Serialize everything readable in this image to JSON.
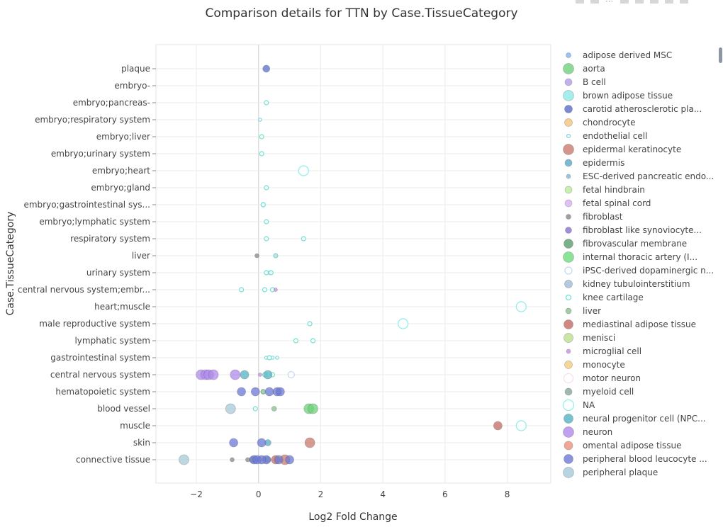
{
  "chart_data": {
    "type": "scatter",
    "title": "Comparison details for TTN by Case.TissueCategory",
    "xlabel": "Log2 Fold Change",
    "ylabel": "Case.TissueCategory",
    "xlim": [
      -3.3,
      9.4
    ],
    "x_ticks": [
      -2,
      0,
      2,
      4,
      6,
      8
    ],
    "x_tick_labels": [
      "−2",
      "0",
      "2",
      "4",
      "6",
      "8"
    ],
    "grid": true,
    "legend_position": "right",
    "categories": [
      "plaque",
      "embryo-",
      "embryo;pancreas-",
      "embryo;respiratory system",
      "embryo;liver",
      "embryo;urinary system",
      "embryo;heart",
      "embryo;gland",
      "embryo;gastrointestinal sys...",
      "embryo;lymphatic system",
      "respiratory system",
      "liver",
      "urinary system",
      "central nervous system;embr...",
      "heart;muscle",
      "male reproductive system",
      "lymphatic system",
      "gastrointestinal system",
      "central nervous system",
      "hematopoietic system",
      "blood vessel",
      "muscle",
      "skin",
      "connective tissue"
    ],
    "series": [
      {
        "name": "adipose derived MSC",
        "color": "#7fb2f0",
        "size": 7,
        "hollow": false,
        "points": [
          [
            -0.05,
            "connective tissue"
          ]
        ]
      },
      {
        "name": "aorta",
        "color": "#6fd17a",
        "size": 15,
        "hollow": false,
        "points": [
          [
            1.62,
            "blood vessel"
          ],
          [
            1.75,
            "blood vessel"
          ]
        ]
      },
      {
        "name": "B cell",
        "color": "#b79be8",
        "size": 10,
        "hollow": false,
        "points": []
      },
      {
        "name": "brown adipose tissue",
        "color": "#8eeae6",
        "size": 15,
        "hollow": false,
        "points": []
      },
      {
        "name": "carotid atherosclerotic pla...",
        "color": "#5a6dc8",
        "size": 11,
        "hollow": false,
        "points": [
          [
            0.25,
            "plaque"
          ]
        ]
      },
      {
        "name": "chondrocyte",
        "color": "#f4c67a",
        "size": 11,
        "hollow": false,
        "points": []
      },
      {
        "name": "endothelial cell",
        "color": "#7fd8e0",
        "size": 5,
        "hollow": true,
        "points": [
          [
            0.05,
            "embryo;respiratory system"
          ],
          [
            0.35,
            "urinary system"
          ],
          [
            0.25,
            "gastrointestinal system"
          ],
          [
            0.45,
            "gastrointestinal system"
          ],
          [
            0.6,
            "gastrointestinal system"
          ]
        ]
      },
      {
        "name": "epidermal keratinocyte",
        "color": "#c97a6e",
        "size": 15,
        "hollow": false,
        "points": [
          [
            1.65,
            "skin"
          ],
          [
            0.85,
            "connective tissue"
          ]
        ]
      },
      {
        "name": "epidermis",
        "color": "#5aa9c9",
        "size": 10,
        "hollow": false,
        "points": [
          [
            0.3,
            "skin"
          ]
        ]
      },
      {
        "name": "ESC-derived pancreatic endo...",
        "color": "#80b6dc",
        "size": 6,
        "hollow": false,
        "points": []
      },
      {
        "name": "fetal hindbrain",
        "color": "#b9ec9a",
        "size": 10,
        "hollow": false,
        "points": []
      },
      {
        "name": "fetal spinal cord",
        "color": "#dab2f2",
        "size": 10,
        "hollow": false,
        "points": []
      },
      {
        "name": "fibroblast",
        "color": "#888888",
        "size": 7,
        "hollow": false,
        "points": [
          [
            -0.05,
            "liver"
          ],
          [
            0.55,
            "liver"
          ],
          [
            -0.85,
            "connective tissue"
          ],
          [
            -0.35,
            "connective tissue"
          ]
        ]
      },
      {
        "name": "fibroblast like synoviocyte...",
        "color": "#8a70cf",
        "size": 9,
        "hollow": false,
        "points": []
      },
      {
        "name": "fibrovascular membrane",
        "color": "#5a9e6a",
        "size": 13,
        "hollow": false,
        "points": []
      },
      {
        "name": "internal thoracic artery (I...",
        "color": "#6edc7e",
        "size": 15,
        "hollow": false,
        "points": []
      },
      {
        "name": "iPSC-derived dopaminergic n...",
        "color": "#c6d7ee",
        "size": 10,
        "hollow": true,
        "points": [
          [
            1.05,
            "central nervous system"
          ]
        ]
      },
      {
        "name": "kidney tubulointerstitium",
        "color": "#9ebbd9",
        "size": 11,
        "hollow": false,
        "points": []
      },
      {
        "name": "knee cartilage",
        "color": "#6fe0d3",
        "size": 7,
        "hollow": true,
        "points": [
          [
            0.25,
            "embryo;pancreas-"
          ],
          [
            0.1,
            "embryo;liver"
          ],
          [
            0.1,
            "embryo;urinary system"
          ],
          [
            0.25,
            "embryo;gland"
          ],
          [
            0.15,
            "embryo;gastrointestinal sys..."
          ],
          [
            0.15,
            "embryo;gastrointestinal sys..."
          ],
          [
            0.25,
            "embryo;lymphatic system"
          ],
          [
            0.25,
            "respiratory system"
          ],
          [
            1.45,
            "respiratory system"
          ],
          [
            0.55,
            "liver"
          ],
          [
            0.4,
            "urinary system"
          ],
          [
            0.25,
            "urinary system"
          ],
          [
            0.45,
            "central nervous system;embr..."
          ],
          [
            0.2,
            "central nervous system;embr..."
          ],
          [
            -0.55,
            "central nervous system;embr..."
          ],
          [
            1.65,
            "male reproductive system"
          ],
          [
            1.2,
            "lymphatic system"
          ],
          [
            1.75,
            "lymphatic system"
          ],
          [
            0.35,
            "gastrointestinal system"
          ],
          [
            0.2,
            "central nervous system"
          ],
          [
            0.45,
            "central nervous system"
          ],
          [
            0.15,
            "hematopoietic system"
          ],
          [
            -0.1,
            "blood vessel"
          ]
        ]
      },
      {
        "name": "liver",
        "color": "#8cbf8c",
        "size": 8,
        "hollow": false,
        "points": [
          [
            0.15,
            "hematopoietic system"
          ],
          [
            0.5,
            "blood vessel"
          ]
        ]
      },
      {
        "name": "mediastinal adipose tissue",
        "color": "#c46b63",
        "size": 13,
        "hollow": false,
        "points": [
          [
            7.7,
            "muscle"
          ],
          [
            0.55,
            "connective tissue"
          ]
        ]
      },
      {
        "name": "menisci",
        "color": "#bde08e",
        "size": 13,
        "hollow": false,
        "points": []
      },
      {
        "name": "microglial cell",
        "color": "#c98de3",
        "size": 6,
        "hollow": false,
        "points": [
          [
            0.55,
            "central nervous system;embr..."
          ],
          [
            0.05,
            "central nervous system"
          ]
        ]
      },
      {
        "name": "monocyte",
        "color": "#f6cc7e",
        "size": 11,
        "hollow": false,
        "points": []
      },
      {
        "name": "motor neuron",
        "color": "#f6dcee",
        "size": 13,
        "hollow": true,
        "points": []
      },
      {
        "name": "myeloid cell",
        "color": "#8aa898",
        "size": 10,
        "hollow": false,
        "points": [
          [
            -0.2,
            "connective tissue"
          ],
          [
            0.3,
            "connective tissue"
          ]
        ]
      },
      {
        "name": "NA",
        "color": "#8eeee8",
        "size": 15,
        "hollow": true,
        "points": [
          [
            1.45,
            "embryo;heart"
          ],
          [
            8.45,
            "heart;muscle"
          ],
          [
            4.65,
            "male reproductive system"
          ],
          [
            8.45,
            "muscle"
          ]
        ]
      },
      {
        "name": "neural progenitor cell (NPC...",
        "color": "#53b3c4",
        "size": 13,
        "hollow": false,
        "points": [
          [
            -0.45,
            "central nervous system"
          ],
          [
            0.3,
            "central nervous system"
          ]
        ]
      },
      {
        "name": "neuron",
        "color": "#b089ec",
        "size": 15,
        "hollow": false,
        "points": [
          [
            -1.85,
            "central nervous system"
          ],
          [
            -1.7,
            "central nervous system"
          ],
          [
            -1.6,
            "central nervous system"
          ],
          [
            -1.45,
            "central nervous system"
          ],
          [
            -0.75,
            "central nervous system"
          ]
        ]
      },
      {
        "name": "omental adipose tissue",
        "color": "#ef9079",
        "size": 12,
        "hollow": false,
        "points": []
      },
      {
        "name": "peripheral blood leucocyte ...",
        "color": "#6b78d6",
        "size": 13,
        "hollow": false,
        "points": [
          [
            -0.8,
            "skin"
          ],
          [
            -0.55,
            "hematopoietic system"
          ],
          [
            -0.1,
            "hematopoietic system"
          ],
          [
            0.35,
            "hematopoietic system"
          ],
          [
            0.6,
            "hematopoietic system"
          ],
          [
            0.7,
            "hematopoietic system"
          ],
          [
            0.1,
            "skin"
          ],
          [
            0.25,
            "connective tissue"
          ],
          [
            -0.15,
            "connective tissue"
          ],
          [
            0.65,
            "connective tissue"
          ],
          [
            1.0,
            "connective tissue"
          ],
          [
            0.1,
            "connective tissue"
          ],
          [
            -0.05,
            "connective tissue"
          ]
        ]
      },
      {
        "name": "peripheral plaque",
        "color": "#a7c9d9",
        "size": 15,
        "hollow": false,
        "points": [
          [
            -0.9,
            "blood vessel"
          ],
          [
            -2.4,
            "connective tissue"
          ]
        ]
      }
    ]
  }
}
